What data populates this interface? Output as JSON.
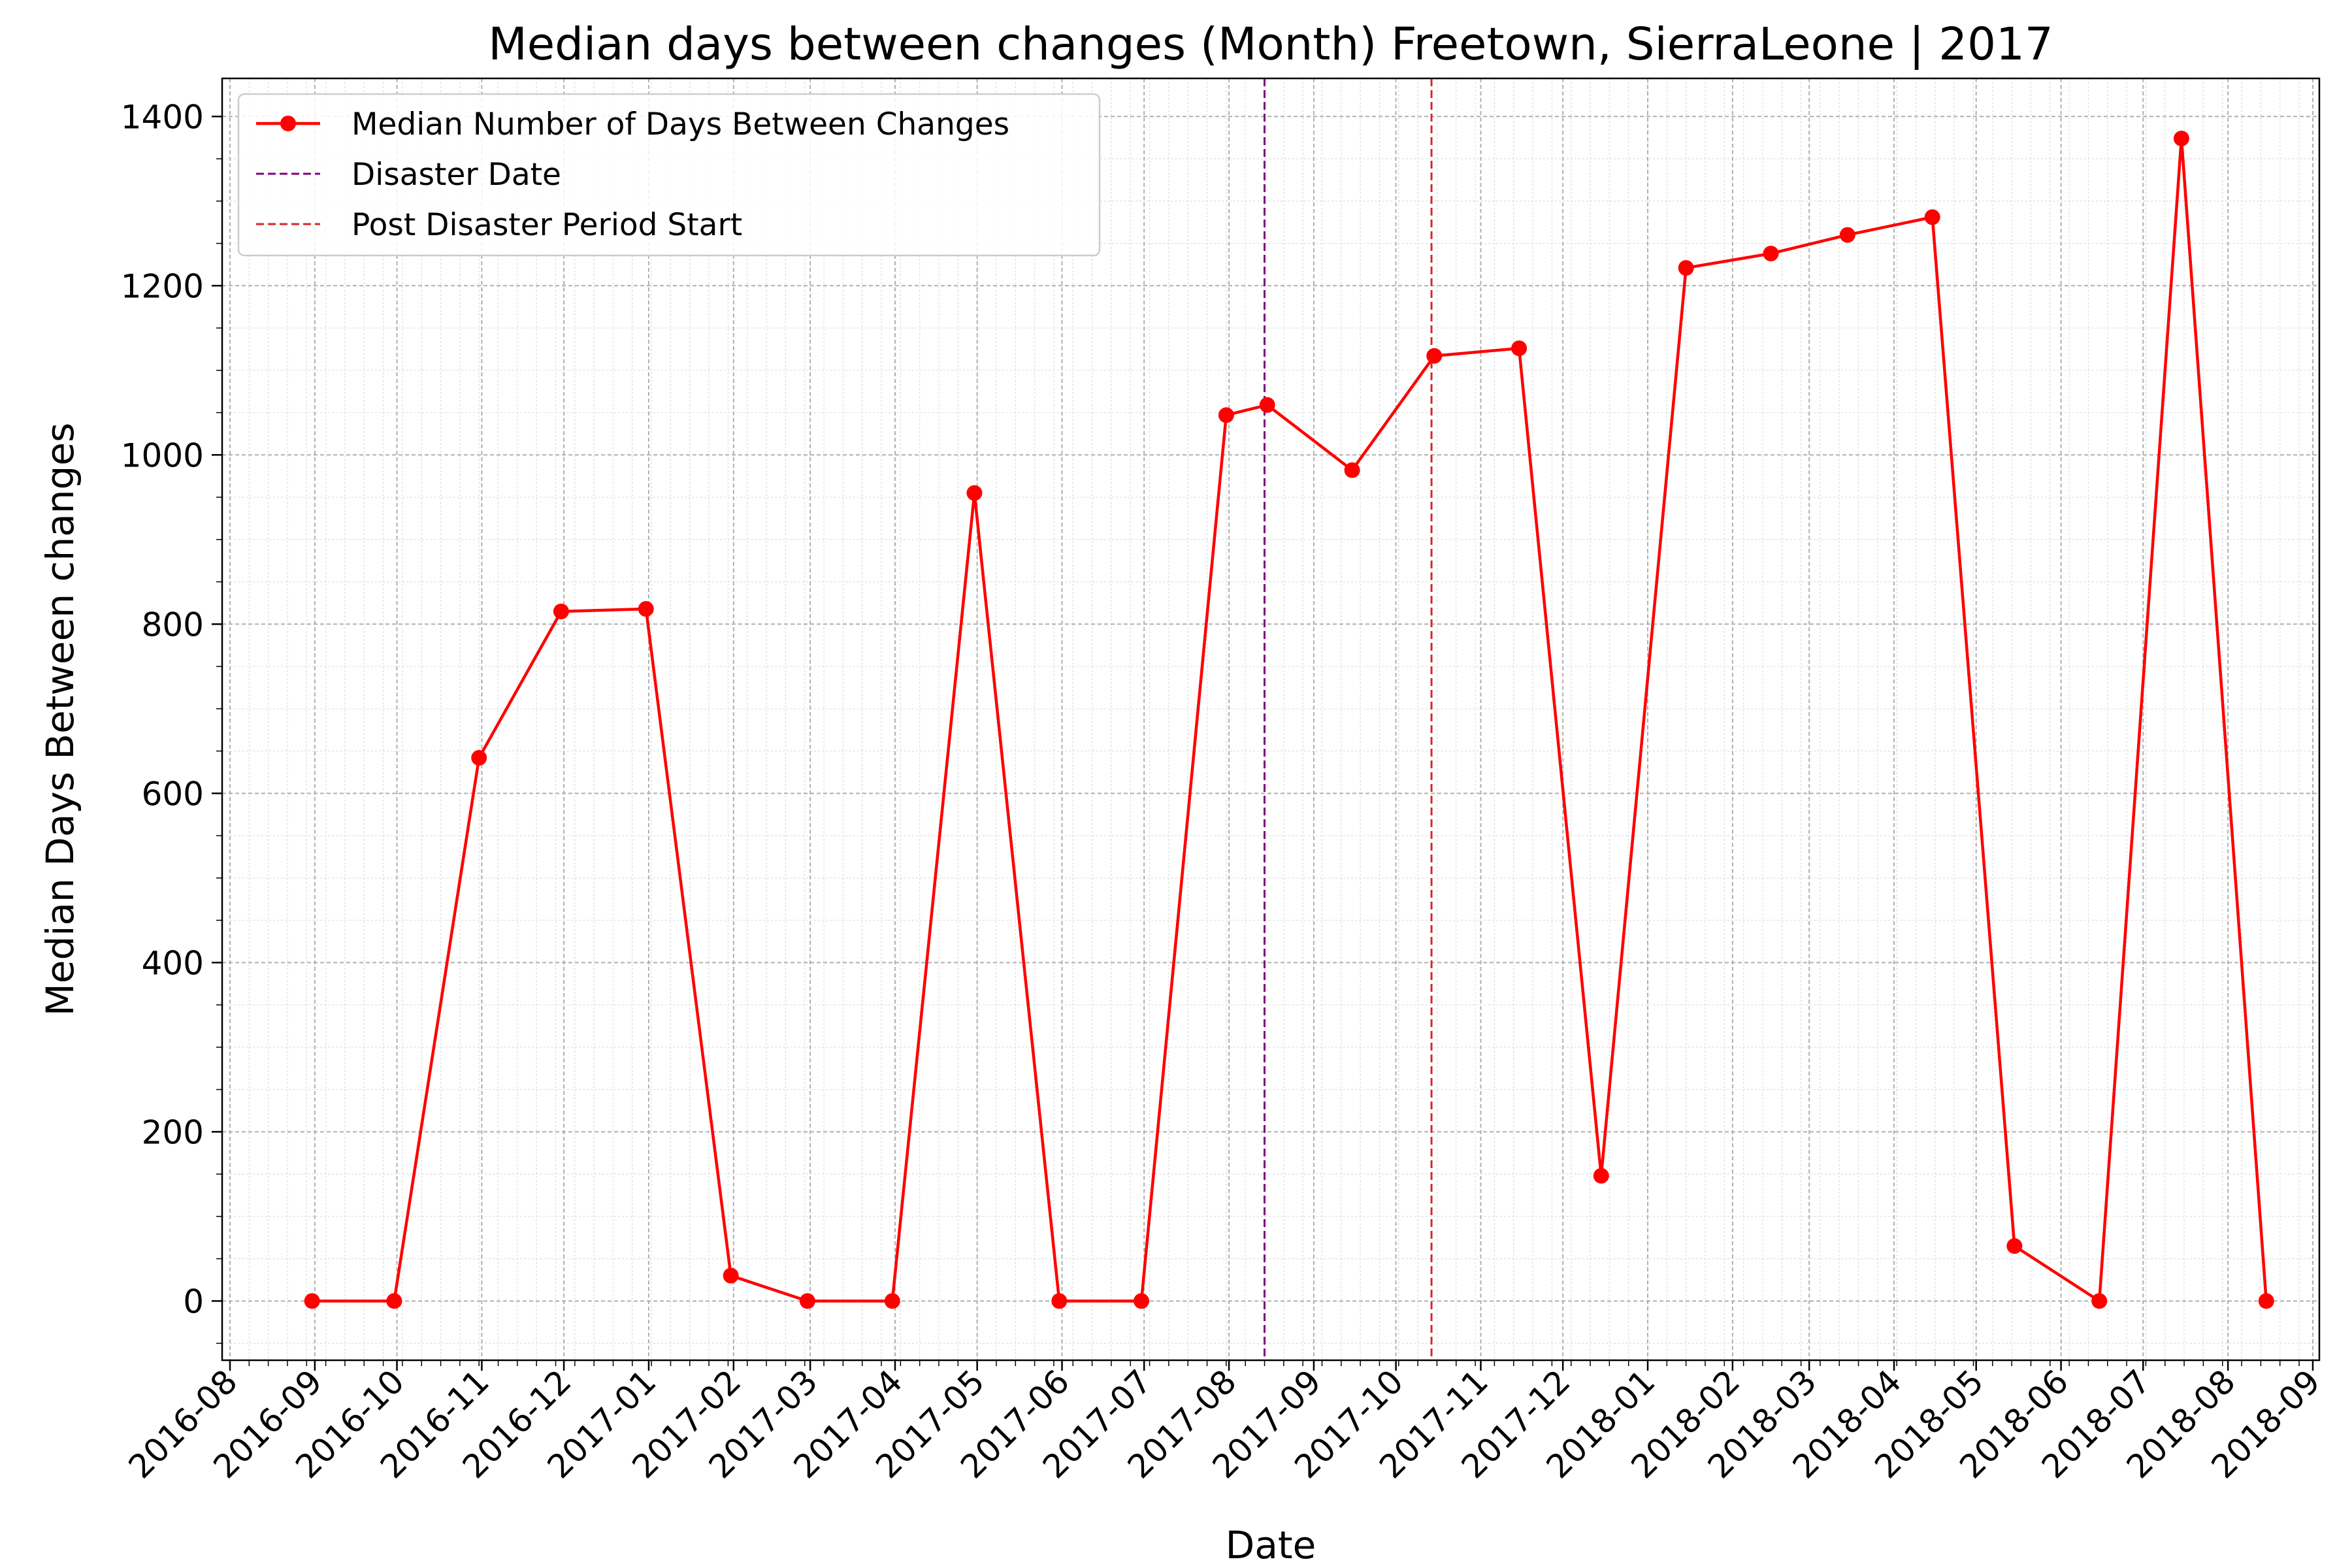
{
  "chart_data": {
    "type": "line",
    "title": "Median days between changes (Month) Freetown, SierraLeone | 2017",
    "xlabel": "Date",
    "ylabel": "Median Days Between changes",
    "x_ticks": [
      "2016-08",
      "2016-09",
      "2016-10",
      "2016-11",
      "2016-12",
      "2017-01",
      "2017-02",
      "2017-03",
      "2017-04",
      "2017-05",
      "2017-06",
      "2017-07",
      "2017-08",
      "2017-09",
      "2017-10",
      "2017-11",
      "2017-12",
      "2018-01",
      "2018-02",
      "2018-03",
      "2018-04",
      "2018-05",
      "2018-06",
      "2018-07",
      "2018-08",
      "2018-09"
    ],
    "y_ticks": [
      0,
      200,
      400,
      600,
      800,
      1000,
      1200,
      1400
    ],
    "ylim": [
      -70,
      1445
    ],
    "grid": true,
    "legend_position": "top-left",
    "series": [
      {
        "name": "Median Number of Days Between Changes",
        "color": "#ff0000",
        "x": [
          "2016-08-31",
          "2016-09-30",
          "2016-10-31",
          "2016-11-30",
          "2016-12-31",
          "2017-01-31",
          "2017-02-28",
          "2017-03-31",
          "2017-04-30",
          "2017-05-31",
          "2017-06-30",
          "2017-07-31",
          "2017-08-15",
          "2017-09-15",
          "2017-10-15",
          "2017-11-15",
          "2017-12-15",
          "2018-01-15",
          "2018-02-15",
          "2018-03-15",
          "2018-04-15",
          "2018-05-15",
          "2018-06-15",
          "2018-07-15",
          "2018-08-15"
        ],
        "y": [
          0,
          0,
          642,
          815,
          818,
          30,
          0,
          0,
          955,
          0,
          0,
          1047,
          1059,
          982,
          1117,
          1126,
          148,
          1221,
          1238,
          1260,
          1281,
          65,
          0,
          1374,
          0
        ]
      }
    ],
    "reference_lines": [
      {
        "name": "Disaster Date",
        "x": "2017-08-14",
        "color": "#800080"
      },
      {
        "name": "Post Disaster Period Start",
        "x": "2017-10-14",
        "color": "#d62728"
      }
    ]
  }
}
